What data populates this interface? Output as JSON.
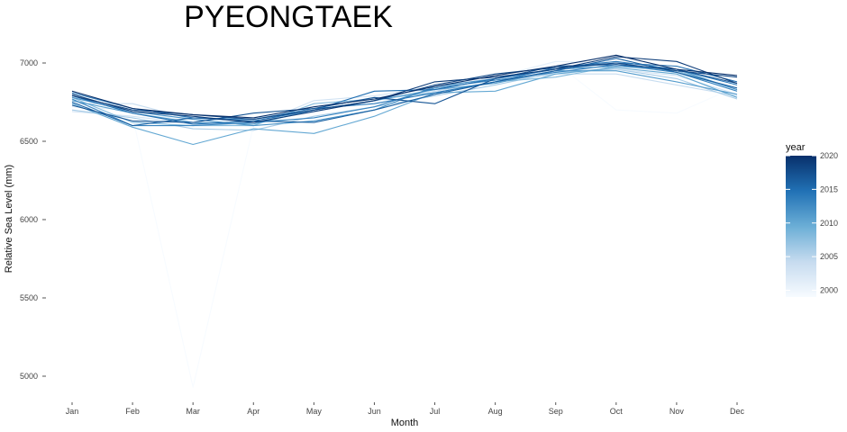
{
  "chart_data": {
    "type": "line",
    "title": "PYEONGTAEK",
    "xlabel": "Month",
    "ylabel": "Relative Sea Level (mm)",
    "categories": [
      "Jan",
      "Feb",
      "Mar",
      "Apr",
      "May",
      "Jun",
      "Jul",
      "Aug",
      "Sep",
      "Oct",
      "Nov",
      "Dec"
    ],
    "yticks": [
      5000,
      5500,
      6000,
      6500,
      7000
    ],
    "ylim": [
      4930,
      7060
    ],
    "grid": false,
    "legend": {
      "title": "year",
      "position": "right",
      "type": "colorbar",
      "range": [
        1999,
        2020
      ],
      "ticks": [
        2000,
        2005,
        2010,
        2015,
        2020
      ],
      "low_color": "#f7fbff",
      "high_color": "#08306b"
    },
    "series": [
      {
        "year": 1999,
        "values": [
          6700,
          6660,
          4930,
          6600,
          6700,
          6750,
          6830,
          6900,
          7000,
          6700,
          6680,
          6850
        ]
      },
      {
        "year": 2001,
        "values": [
          6720,
          6700,
          6620,
          6620,
          6720,
          6780,
          6840,
          6910,
          7010,
          7000,
          6940,
          6830
        ]
      },
      {
        "year": 2003,
        "values": [
          6690,
          6660,
          6610,
          6600,
          6760,
          6790,
          6850,
          6900,
          6950,
          6960,
          6920,
          6800
        ]
      },
      {
        "year": 2004,
        "values": [
          6740,
          6740,
          6640,
          6630,
          6690,
          6760,
          6820,
          6880,
          6930,
          6930,
          6860,
          6790
        ]
      },
      {
        "year": 2006,
        "values": [
          6700,
          6650,
          6580,
          6570,
          6660,
          6720,
          6790,
          6860,
          6940,
          6960,
          6900,
          6770
        ]
      },
      {
        "year": 2008,
        "values": [
          6780,
          6620,
          6600,
          6600,
          6740,
          6770,
          6810,
          6880,
          6910,
          6980,
          6950,
          6830
        ]
      },
      {
        "year": 2010,
        "values": [
          6740,
          6590,
          6480,
          6580,
          6550,
          6660,
          6810,
          6820,
          6930,
          6970,
          6930,
          6780
        ]
      },
      {
        "year": 2011,
        "values": [
          6760,
          6680,
          6620,
          6610,
          6700,
          6760,
          6830,
          6870,
          6950,
          6950,
          6880,
          6800
        ]
      },
      {
        "year": 2012,
        "values": [
          6780,
          6690,
          6640,
          6600,
          6630,
          6700,
          6850,
          6900,
          6960,
          6980,
          6960,
          6830
        ]
      },
      {
        "year": 2013,
        "values": [
          6770,
          6600,
          6600,
          6620,
          6650,
          6720,
          6840,
          6890,
          6940,
          6990,
          6940,
          6820
        ]
      },
      {
        "year": 2014,
        "values": [
          6810,
          6710,
          6650,
          6640,
          6710,
          6740,
          6810,
          6880,
          6970,
          7010,
          6960,
          6860
        ]
      },
      {
        "year": 2015,
        "values": [
          6790,
          6680,
          6610,
          6630,
          6700,
          6820,
          6830,
          6900,
          6960,
          7000,
          6980,
          6880
        ]
      },
      {
        "year": 2016,
        "values": [
          6750,
          6600,
          6650,
          6630,
          6620,
          6700,
          6800,
          6880,
          6950,
          7030,
          6940,
          6840
        ]
      },
      {
        "year": 2017,
        "values": [
          6730,
          6630,
          6620,
          6680,
          6710,
          6780,
          6740,
          6900,
          6980,
          6990,
          6960,
          6870
        ]
      },
      {
        "year": 2018,
        "values": [
          6790,
          6700,
          6670,
          6640,
          6700,
          6760,
          6860,
          6930,
          6970,
          7000,
          6950,
          6910
        ]
      },
      {
        "year": 2019,
        "values": [
          6800,
          6690,
          6660,
          6620,
          6690,
          6760,
          6880,
          6910,
          6960,
          7040,
          7010,
          6870
        ]
      },
      {
        "year": 2020,
        "values": [
          6820,
          6710,
          6670,
          6650,
          6720,
          6770,
          6850,
          6920,
          6980,
          7050,
          6960,
          6920
        ]
      }
    ]
  }
}
